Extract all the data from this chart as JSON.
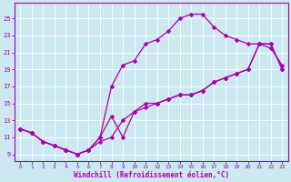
{
  "xlabel": "Windchill (Refroidissement éolien,°C)",
  "bg_color": "#cce8f0",
  "line_color": "#aa00aa",
  "xlim": [
    -0.5,
    23.5
  ],
  "ylim": [
    8.2,
    26.8
  ],
  "xticks": [
    0,
    1,
    2,
    3,
    4,
    5,
    6,
    7,
    8,
    9,
    10,
    11,
    12,
    13,
    14,
    15,
    16,
    17,
    18,
    19,
    20,
    21,
    22,
    23
  ],
  "yticks": [
    9,
    11,
    13,
    15,
    17,
    19,
    21,
    23,
    25
  ],
  "line1_x": [
    0,
    1,
    2,
    3,
    4,
    5,
    6,
    7,
    8,
    9,
    10,
    11,
    12,
    13,
    14,
    15,
    16,
    17,
    18,
    19,
    20,
    21,
    22,
    23
  ],
  "line1_y": [
    12,
    11.5,
    10.5,
    10.0,
    9.5,
    9.0,
    9.5,
    11.0,
    17.0,
    19.5,
    20.0,
    22.0,
    22.5,
    23.5,
    25.0,
    25.5,
    25.5,
    24.0,
    23.0,
    22.5,
    22.0,
    22.0,
    21.5,
    19.5
  ],
  "line2_x": [
    0,
    1,
    2,
    3,
    4,
    5,
    6,
    7,
    8,
    9,
    10,
    11,
    12,
    13,
    14,
    15,
    16,
    17,
    18,
    19,
    20,
    21,
    22,
    23
  ],
  "line2_y": [
    12,
    11.5,
    10.5,
    10.0,
    9.5,
    9.0,
    9.5,
    10.5,
    11.0,
    13.0,
    14.0,
    14.5,
    15.0,
    15.5,
    16.0,
    16.0,
    16.5,
    17.5,
    18.0,
    18.5,
    19.0,
    22.0,
    22.0,
    19.0
  ],
  "line3_x": [
    0,
    1,
    2,
    3,
    4,
    5,
    6,
    7,
    8,
    9,
    10,
    11,
    12,
    13,
    14,
    15,
    16,
    17,
    18,
    19,
    20,
    21,
    22,
    23
  ],
  "line3_y": [
    12,
    11.5,
    10.5,
    10.0,
    9.5,
    9.0,
    9.5,
    11.0,
    13.5,
    11.0,
    14.0,
    15.0,
    15.0,
    15.5,
    16.0,
    16.0,
    16.5,
    17.5,
    18.0,
    18.5,
    19.0,
    22.0,
    22.0,
    19.0
  ],
  "marker": "D",
  "markersize": 2.5,
  "linewidth": 0.9
}
